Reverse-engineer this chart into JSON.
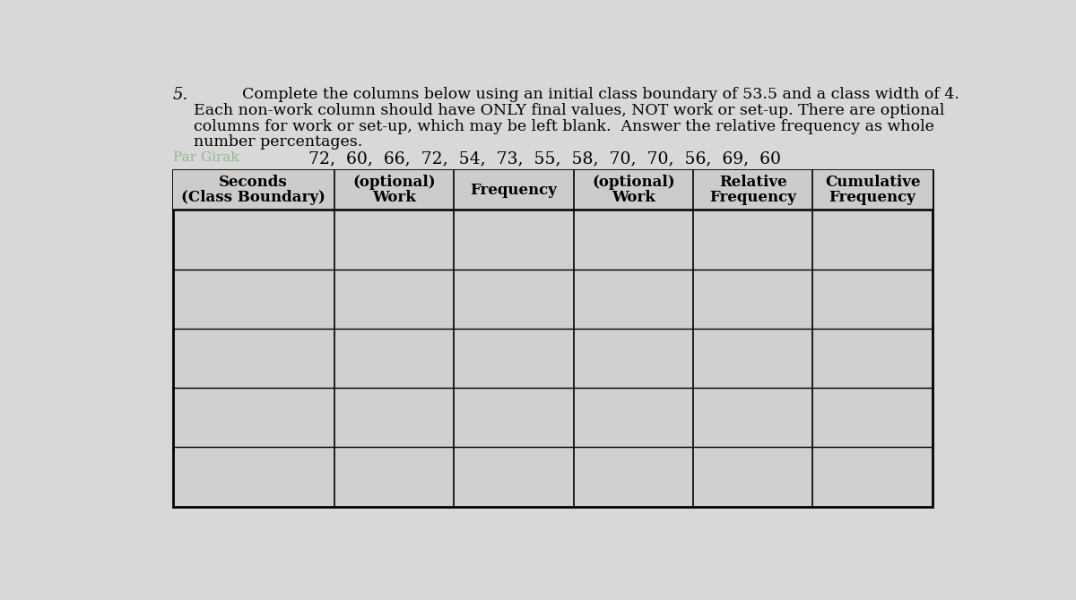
{
  "problem_number": "5.",
  "instructions_line1": "Complete the columns below using an initial class boundary of 53.5 and a class width of 4.",
  "instructions_line2": "Each non-work column should have ONLY final values, NOT work or set-up. There are optional",
  "instructions_line3": "columns for work or set-up, which may be left blank.  Answer the relative frequency as whole",
  "instructions_line4": "number percentages.",
  "data_label": "72,  60,  66,  72,  54,  73,  55,  58,  70,  70,  56,  69,  60",
  "watermark": "Par Girak",
  "col_headers": [
    [
      "Seconds",
      "(Class Boundary)"
    ],
    [
      "(optional)",
      "Work"
    ],
    [
      "Frequency",
      ""
    ],
    [
      "(optional)",
      "Work"
    ],
    [
      "Relative",
      "Frequency"
    ],
    [
      "Cumulative",
      "Frequency"
    ]
  ],
  "num_data_rows": 5,
  "bg_color": "#d8d8d8",
  "table_fill": "#d0d0d0",
  "fig_width": 12.0,
  "fig_height": 6.7
}
